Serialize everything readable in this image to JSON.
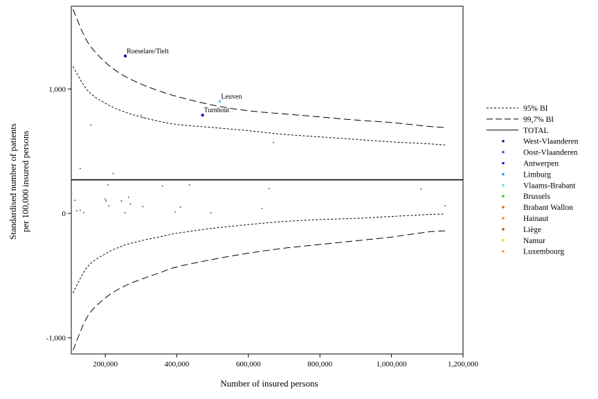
{
  "chart_data": {
    "type": "scatter",
    "subtype": "funnel-plot",
    "title": "",
    "xlabel": "Number of insured persons",
    "ylabel_lines": [
      "Standardised number of patients",
      "per 100,000 insured persons"
    ],
    "xlim": [
      105000,
      1200000
    ],
    "ylim": [
      -1130,
      1665
    ],
    "x_ticks": [
      200000,
      400000,
      600000,
      800000,
      1000000,
      1200000
    ],
    "x_tick_labels": [
      "200,000",
      "400,000",
      "600,000",
      "800,000",
      "1,000,000",
      "1,200,000"
    ],
    "y_ticks": [
      1000,
      0,
      -1000
    ],
    "y_tick_labels": [
      "1,000",
      "0",
      "-1,000"
    ],
    "grid": false,
    "legend_position": "right",
    "legend": [
      {
        "label": "95% BI",
        "kind": "dotted-line"
      },
      {
        "label": "99,7% BI",
        "kind": "dashed-line"
      },
      {
        "label": "TOTAL",
        "kind": "solid-line"
      },
      {
        "label": "West-Vlaanderen",
        "kind": "marker",
        "color": "#1a1a8c"
      },
      {
        "label": "Oost-Vlaanderen",
        "kind": "marker",
        "color": "#3d5fc4"
      },
      {
        "label": "Antwerpen",
        "kind": "marker",
        "color": "#1a1ad9"
      },
      {
        "label": "Limburg",
        "kind": "marker",
        "color": "#2e8fd6"
      },
      {
        "label": "Vlaams-Brabant",
        "kind": "marker",
        "color": "#7ec8ee"
      },
      {
        "label": "Brussels",
        "kind": "marker",
        "color": "#3fbf3f"
      },
      {
        "label": "Brabant Wallon",
        "kind": "marker",
        "color": "#d2691e"
      },
      {
        "label": "Hainaut",
        "kind": "marker",
        "color": "#f28c1e"
      },
      {
        "label": "Liège",
        "kind": "marker",
        "color": "#b5502a"
      },
      {
        "label": "Namur",
        "kind": "marker",
        "color": "#f5d000"
      },
      {
        "label": "Luxembourg",
        "kind": "marker",
        "color": "#f0a830"
      }
    ],
    "total_line": 270,
    "limits": {
      "upper_997": [
        [
          110000,
          1640
        ],
        [
          150000,
          1380
        ],
        [
          200000,
          1215
        ],
        [
          250000,
          1110
        ],
        [
          300000,
          1040
        ],
        [
          350000,
          985
        ],
        [
          400000,
          940
        ],
        [
          500000,
          870
        ],
        [
          600000,
          825
        ],
        [
          700000,
          800
        ],
        [
          800000,
          775
        ],
        [
          900000,
          750
        ],
        [
          1000000,
          730
        ],
        [
          1100000,
          700
        ],
        [
          1150000,
          690
        ]
      ],
      "upper_95": [
        [
          110000,
          1180
        ],
        [
          150000,
          990
        ],
        [
          200000,
          885
        ],
        [
          250000,
          820
        ],
        [
          300000,
          775
        ],
        [
          350000,
          740
        ],
        [
          400000,
          715
        ],
        [
          500000,
          690
        ],
        [
          600000,
          665
        ],
        [
          700000,
          635
        ],
        [
          800000,
          615
        ],
        [
          900000,
          595
        ],
        [
          1000000,
          575
        ],
        [
          1100000,
          560
        ],
        [
          1150000,
          550
        ]
      ],
      "lower_95": [
        [
          110000,
          -640
        ],
        [
          150000,
          -430
        ],
        [
          200000,
          -325
        ],
        [
          250000,
          -260
        ],
        [
          300000,
          -220
        ],
        [
          350000,
          -190
        ],
        [
          400000,
          -160
        ],
        [
          500000,
          -120
        ],
        [
          600000,
          -90
        ],
        [
          700000,
          -65
        ],
        [
          800000,
          -50
        ],
        [
          900000,
          -40
        ],
        [
          1000000,
          -25
        ],
        [
          1100000,
          -10
        ],
        [
          1150000,
          -5
        ]
      ],
      "lower_997": [
        [
          110000,
          -1100
        ],
        [
          150000,
          -830
        ],
        [
          200000,
          -680
        ],
        [
          250000,
          -590
        ],
        [
          300000,
          -530
        ],
        [
          350000,
          -480
        ],
        [
          400000,
          -430
        ],
        [
          500000,
          -370
        ],
        [
          600000,
          -320
        ],
        [
          700000,
          -280
        ],
        [
          800000,
          -250
        ],
        [
          900000,
          -220
        ],
        [
          1000000,
          -190
        ],
        [
          1100000,
          -150
        ],
        [
          1150000,
          -140
        ]
      ]
    },
    "labeled_points": [
      {
        "label": "Roeselare/Tielt",
        "x": 256000,
        "y": 1265,
        "color": "#1a1a8c"
      },
      {
        "label": "Leuven",
        "x": 520000,
        "y": 900,
        "color": "#7ec8ee"
      },
      {
        "label": "Turnhout",
        "x": 472000,
        "y": 790,
        "color": "#1a1ad9"
      }
    ],
    "small_points": [
      [
        160000,
        710
      ],
      [
        300000,
        790
      ],
      [
        305000,
        770
      ],
      [
        670000,
        570
      ],
      [
        130000,
        360
      ],
      [
        222000,
        320
      ],
      [
        115000,
        105
      ],
      [
        120000,
        20
      ],
      [
        130000,
        25
      ],
      [
        140000,
        5
      ],
      [
        200000,
        115
      ],
      [
        202000,
        100
      ],
      [
        208000,
        230
      ],
      [
        210000,
        60
      ],
      [
        245000,
        100
      ],
      [
        255000,
        5
      ],
      [
        265000,
        130
      ],
      [
        270000,
        75
      ],
      [
        305000,
        55
      ],
      [
        360000,
        220
      ],
      [
        395000,
        10
      ],
      [
        410000,
        50
      ],
      [
        435000,
        230
      ],
      [
        495000,
        5
      ],
      [
        638000,
        40
      ],
      [
        658000,
        200
      ],
      [
        1082000,
        195
      ],
      [
        1150000,
        60
      ]
    ]
  }
}
